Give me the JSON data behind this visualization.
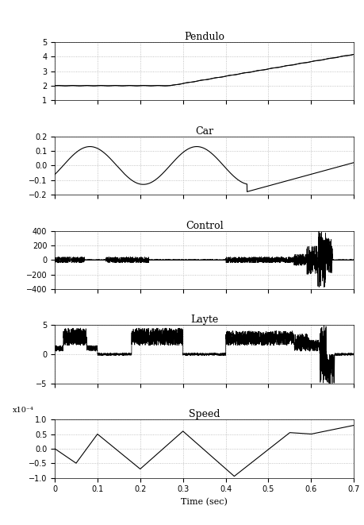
{
  "subplot_titles": [
    "Pendulo",
    "Car",
    "Control",
    "Layte",
    "Speed"
  ],
  "xlabel": "Time (sec)",
  "xlim": [
    0,
    0.7
  ],
  "xticks": [
    0,
    0.1,
    0.2,
    0.3,
    0.4,
    0.5,
    0.6,
    0.7
  ],
  "xticklabels": [
    "0",
    "0.1",
    "0.2",
    "0.3",
    "0.4",
    "0.5",
    "0.6",
    "0.7"
  ],
  "pendulo_ylim": [
    1,
    5
  ],
  "pendulo_yticks": [
    1,
    2,
    3,
    4,
    5
  ],
  "car_ylim": [
    -0.2,
    0.2
  ],
  "car_yticks": [
    -0.2,
    -0.1,
    0,
    0.1,
    0.2
  ],
  "control_ylim": [
    -400,
    400
  ],
  "control_yticks": [
    -400,
    -200,
    0,
    200,
    400
  ],
  "layte_ylim": [
    -5,
    5
  ],
  "layte_yticks": [
    -5,
    0,
    5
  ],
  "speed_ylim": [
    -1,
    1
  ],
  "speed_yticks": [
    -1,
    -0.5,
    0,
    0.5,
    1
  ],
  "speed_scale_label": "x10⁻⁴",
  "line_color": "#000000",
  "grid_color": "#aaaaaa",
  "bg_color": "#ffffff",
  "title_fontsize": 9,
  "tick_fontsize": 7
}
